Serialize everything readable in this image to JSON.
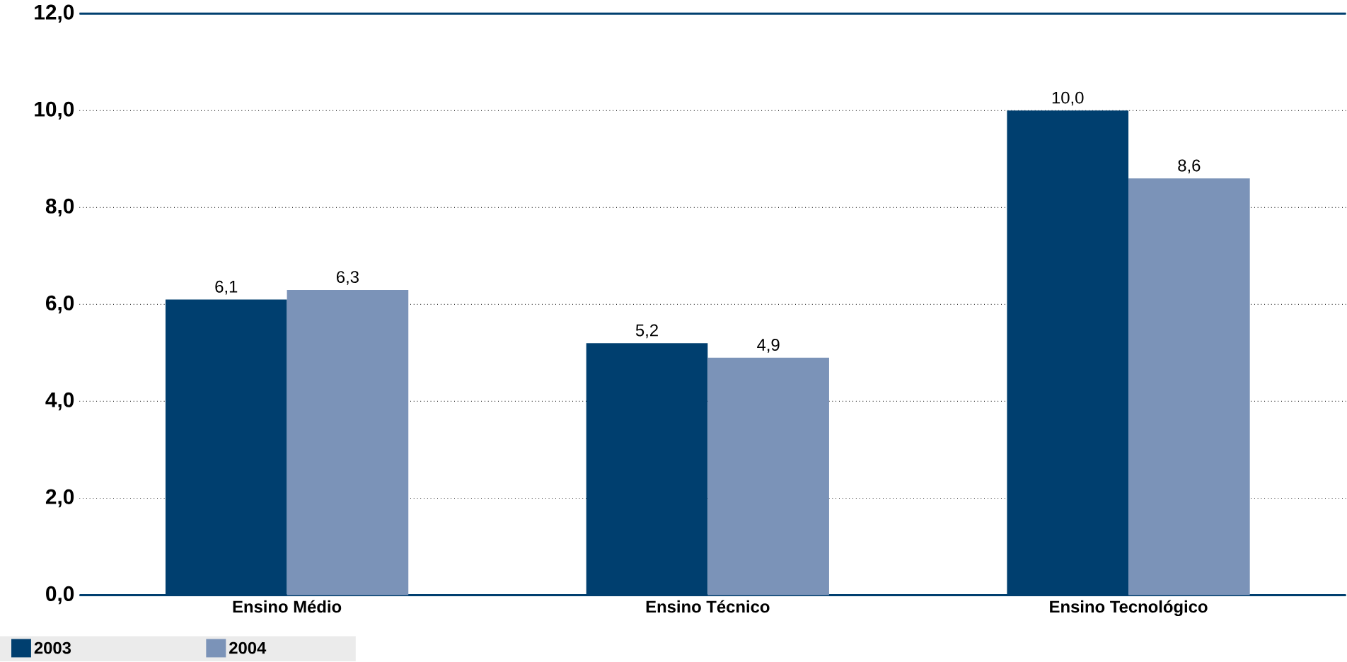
{
  "chart_data": {
    "type": "bar",
    "categories": [
      "Ensino Médio",
      "Ensino Técnico",
      "Ensino Tecnológico"
    ],
    "series": [
      {
        "name": "2003",
        "color": "#003f6f",
        "values": [
          6.1,
          5.2,
          10.0
        ],
        "value_labels": [
          "6,1",
          "5,2",
          "10,0"
        ]
      },
      {
        "name": "2004",
        "color": "#7b93b8",
        "values": [
          6.3,
          4.9,
          8.6
        ],
        "value_labels": [
          "6,3",
          "4,9",
          "8,6"
        ]
      }
    ],
    "ylim": [
      0,
      12
    ],
    "yticks": [
      {
        "value": 0,
        "label": "0,0"
      },
      {
        "value": 2,
        "label": "2,0"
      },
      {
        "value": 4,
        "label": "4,0"
      },
      {
        "value": 6,
        "label": "6,0"
      },
      {
        "value": 8,
        "label": "8,0"
      },
      {
        "value": 10,
        "label": "10,0"
      },
      {
        "value": 12,
        "label": "12,0"
      }
    ],
    "grid": "y",
    "legend": "bottom left"
  }
}
